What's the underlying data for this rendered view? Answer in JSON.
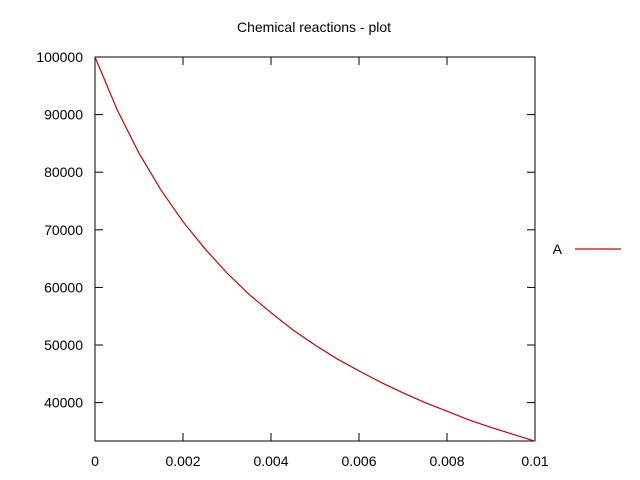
{
  "chart_data": {
    "type": "line",
    "title": "Chemical reactions - plot",
    "xlabel": "",
    "ylabel": "",
    "xlim": [
      0,
      0.01
    ],
    "ylim": [
      33333,
      100000
    ],
    "x_ticks": [
      "0",
      "0.002",
      "0.004",
      "0.006",
      "0.008",
      "0.01"
    ],
    "x_tick_values": [
      0,
      0.002,
      0.004,
      0.006,
      0.008,
      0.01
    ],
    "y_ticks": [
      "40000",
      "50000",
      "60000",
      "70000",
      "80000",
      "90000",
      "100000"
    ],
    "y_tick_values": [
      40000,
      50000,
      60000,
      70000,
      80000,
      90000,
      100000
    ],
    "grid": false,
    "legend_position": "right",
    "series": [
      {
        "name": "A",
        "color": "#cc0000",
        "x": [
          0,
          0.0005,
          0.001,
          0.0015,
          0.002,
          0.0025,
          0.003,
          0.0035,
          0.004,
          0.0045,
          0.005,
          0.0055,
          0.006,
          0.0065,
          0.007,
          0.0075,
          0.008,
          0.0085,
          0.009,
          0.0095,
          0.01
        ],
        "values": [
          100000,
          90900,
          83300,
          76900,
          71400,
          66700,
          62500,
          58800,
          55600,
          52600,
          50000,
          47600,
          45500,
          43500,
          41700,
          40000,
          38500,
          37000,
          35700,
          34500,
          33300
        ]
      }
    ]
  }
}
